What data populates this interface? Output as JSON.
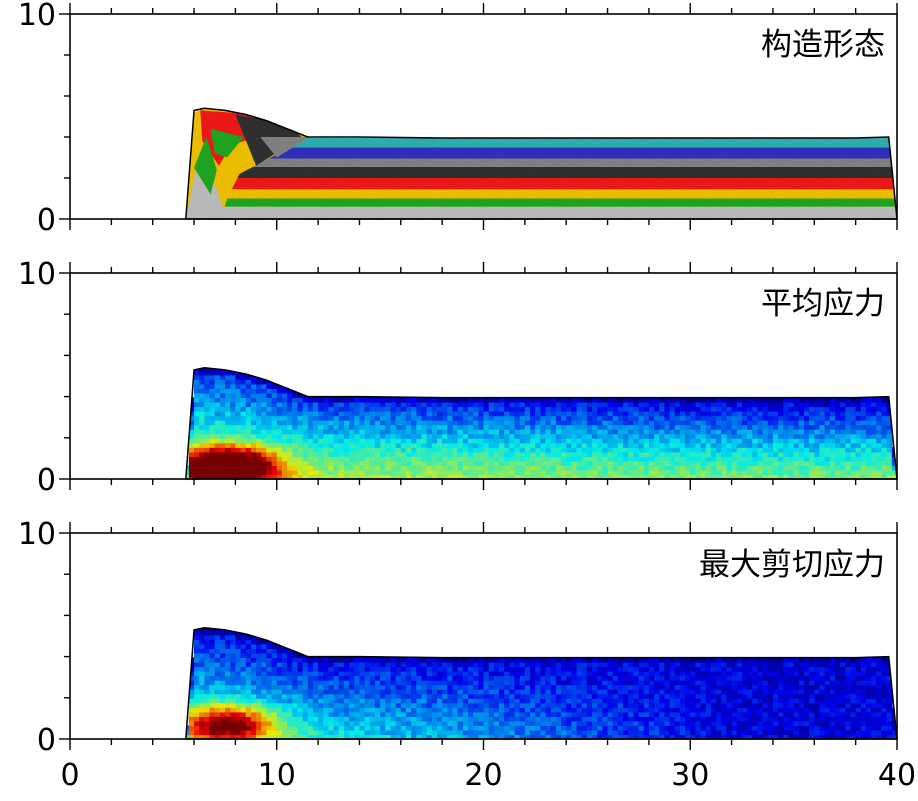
{
  "chart_data": [
    {
      "type": "heatmap",
      "title": "构造形态",
      "colormap": "discrete-layers",
      "xlim": [
        0,
        40
      ],
      "ylim": [
        0,
        10
      ],
      "x_ticks": [
        0,
        10,
        20,
        30,
        40
      ],
      "y_ticks": [
        0,
        10
      ],
      "y_tick_labels": [
        "0",
        "10"
      ],
      "surface_profile": {
        "x": [
          5.6,
          6.0,
          6.5,
          7.5,
          8.5,
          9.5,
          10.5,
          11.5,
          14,
          18,
          22,
          26,
          30,
          34,
          38,
          39.6,
          40
        ],
        "y": [
          0,
          5.3,
          5.4,
          5.3,
          5.1,
          4.8,
          4.4,
          4.0,
          4.0,
          3.95,
          3.95,
          3.95,
          3.95,
          3.95,
          3.95,
          4.0,
          0
        ]
      },
      "layers": [
        {
          "color": "#c8c8c8",
          "y_bottom": 0.0,
          "y_top": 0.6
        },
        {
          "color": "#22b022",
          "y_bottom": 0.6,
          "y_top": 1.0
        },
        {
          "color": "#ffcc00",
          "y_bottom": 1.0,
          "y_top": 1.45
        },
        {
          "color": "#ff1a1a",
          "y_bottom": 1.45,
          "y_top": 2.0
        },
        {
          "color": "#333333",
          "y_bottom": 2.0,
          "y_top": 2.55
        },
        {
          "color": "#8a8a8a",
          "y_bottom": 2.55,
          "y_top": 2.95
        },
        {
          "color": "#3333cc",
          "y_bottom": 2.95,
          "y_top": 3.5
        },
        {
          "color": "#33bbbb",
          "y_bottom": 3.5,
          "y_top": 3.95
        }
      ]
    },
    {
      "type": "heatmap",
      "title": "平均应力",
      "colormap": "jet",
      "xlim": [
        0,
        40
      ],
      "ylim": [
        0,
        10
      ],
      "x_ticks": [
        0,
        10,
        20,
        30,
        40
      ],
      "y_ticks": [
        0,
        10
      ],
      "y_tick_labels": [
        "0",
        "10"
      ],
      "hotspot": {
        "x": 7.5,
        "y": 0.5,
        "level": 1.0
      }
    },
    {
      "type": "heatmap",
      "title": "最大剪切应力",
      "colormap": "jet",
      "xlim": [
        0,
        40
      ],
      "ylim": [
        0,
        10
      ],
      "x_ticks": [
        0,
        10,
        20,
        30,
        40
      ],
      "x_tick_labels": [
        "0",
        "10",
        "20",
        "30",
        "40"
      ],
      "y_ticks": [
        0,
        10
      ],
      "y_tick_labels": [
        "0",
        "10"
      ],
      "hotspot": {
        "x": 7.5,
        "y": 0.6,
        "level": 0.65
      }
    }
  ]
}
